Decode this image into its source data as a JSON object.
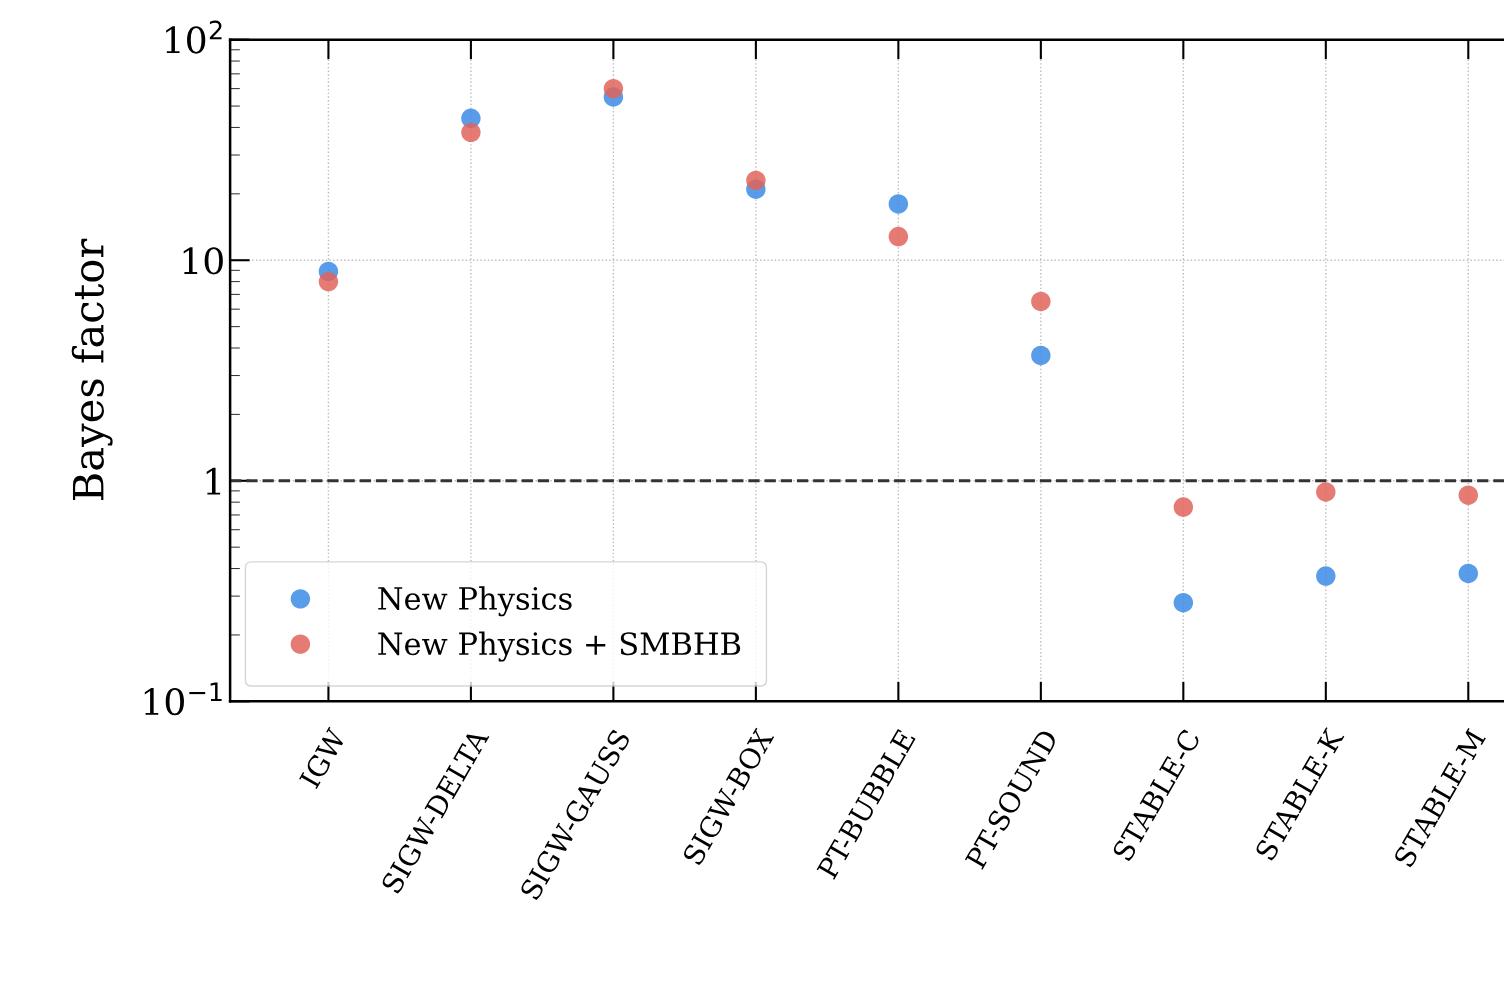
{
  "chart_data": {
    "type": "scatter",
    "ylabel": "Bayes factor",
    "categories": [
      "IGW",
      "SIGW-DELTA",
      "SIGW-GAUSS",
      "SIGW-BOX",
      "PT-BUBBLE",
      "PT-SOUND",
      "STABLE-C",
      "STABLE-K",
      "STABLE-M"
    ],
    "series": [
      {
        "name": "New Physics",
        "color": "#3c8ce6",
        "values": [
          8.9,
          44,
          55,
          21,
          18,
          3.7,
          0.28,
          0.37,
          0.38
        ]
      },
      {
        "name": "New Physics + SMBHB",
        "color": "#e0645a",
        "values": [
          8.0,
          38,
          60,
          23,
          12.8,
          6.5,
          0.76,
          0.89,
          0.86
        ]
      }
    ],
    "log": "y",
    "ylim": [
      0.1,
      100
    ],
    "yticks": [
      {
        "value": 0.1,
        "label": "10$^{−1}$"
      },
      1,
      10,
      {
        "value": 100,
        "label": "10$^{2}$"
      }
    ],
    "ref_lines": [
      {
        "axis": "y",
        "value": 1,
        "color": "#333333",
        "line_style": "dashed"
      }
    ],
    "grid": true,
    "legend": "bottom left",
    "marker": "circle"
  }
}
